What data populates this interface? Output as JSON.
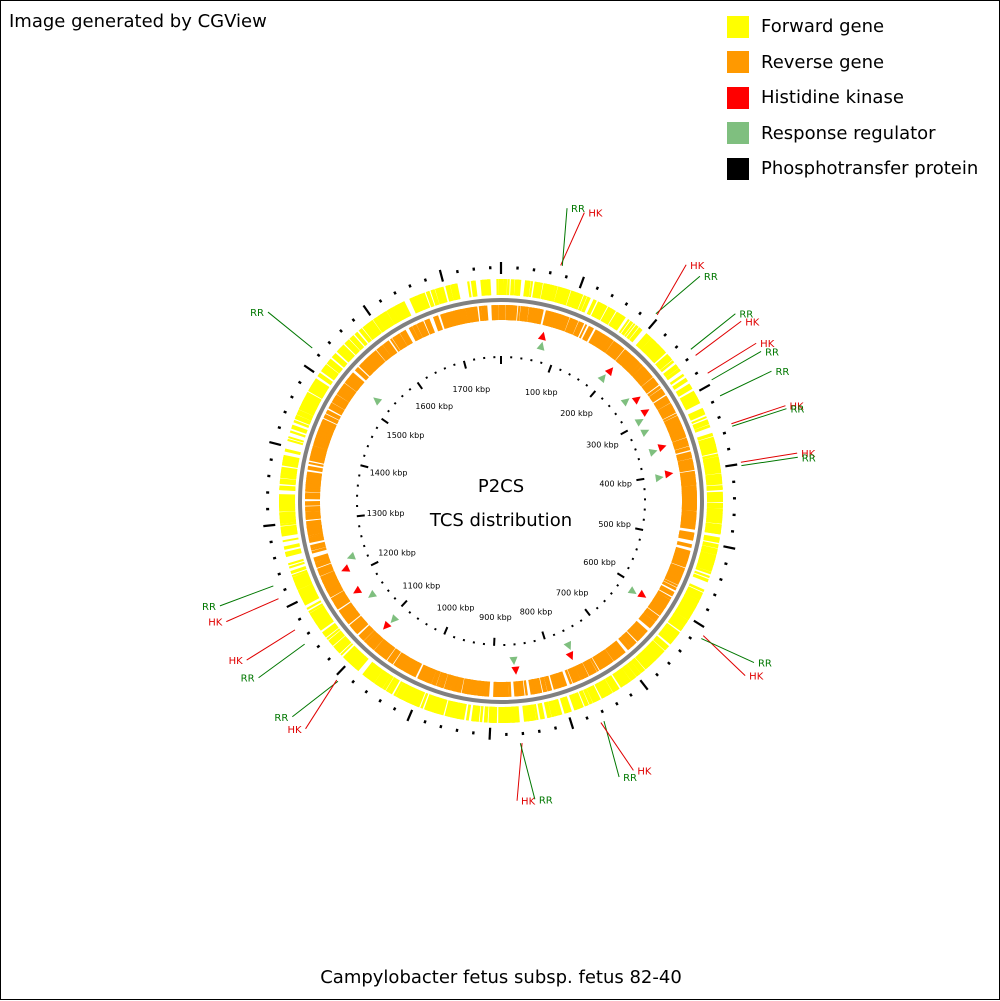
{
  "header": {
    "generator_credit": "Image generated by CGView"
  },
  "legend": [
    {
      "label": "Forward gene",
      "color": "#ffff00"
    },
    {
      "label": "Reverse gene",
      "color": "#ff9900"
    },
    {
      "label": "Histidine kinase",
      "color": "#ff0000"
    },
    {
      "label": "Response regulator",
      "color": "#7fbf7f"
    },
    {
      "label": "Phosphotransfer protein",
      "color": "#000000"
    }
  ],
  "map": {
    "center_title": "P2CS",
    "center_subtitle": "TCS distribution",
    "genome_length_kbp": 1773,
    "tick_labels": [
      "100 kbp",
      "200 kbp",
      "300 kbp",
      "400 kbp",
      "500 kbp",
      "600 kbp",
      "700 kbp",
      "800 kbp",
      "900 kbp",
      "1000 kbp",
      "1100 kbp",
      "1200 kbp",
      "1300 kbp",
      "1400 kbp",
      "1500 kbp",
      "1600 kbp",
      "1700 kbp"
    ],
    "features": [
      {
        "label": "HK",
        "kind": "histidine-kinase",
        "position_kbp": 70
      },
      {
        "label": "RR",
        "kind": "response-regulator",
        "position_kbp": 72
      },
      {
        "label": "RR",
        "kind": "response-regulator",
        "position_kbp": 195
      },
      {
        "label": "HK",
        "kind": "histidine-kinase",
        "position_kbp": 197
      },
      {
        "label": "RR",
        "kind": "response-regulator",
        "position_kbp": 253
      },
      {
        "label": "HK",
        "kind": "histidine-kinase",
        "position_kbp": 262
      },
      {
        "label": "HK",
        "kind": "histidine-kinase",
        "position_kbp": 287
      },
      {
        "label": "RR",
        "kind": "response-regulator",
        "position_kbp": 296
      },
      {
        "label": "RR",
        "kind": "response-regulator",
        "position_kbp": 317
      },
      {
        "label": "HK",
        "kind": "histidine-kinase",
        "position_kbp": 352
      },
      {
        "label": "RR",
        "kind": "response-regulator",
        "position_kbp": 355
      },
      {
        "label": "HK",
        "kind": "histidine-kinase",
        "position_kbp": 398
      },
      {
        "label": "RR",
        "kind": "response-regulator",
        "position_kbp": 402
      },
      {
        "label": "HK",
        "kind": "histidine-kinase",
        "position_kbp": 609
      },
      {
        "label": "RR",
        "kind": "response-regulator",
        "position_kbp": 613
      },
      {
        "label": "RR",
        "kind": "response-regulator",
        "position_kbp": 763
      },
      {
        "label": "HK",
        "kind": "histidine-kinase",
        "position_kbp": 767
      },
      {
        "label": "HK",
        "kind": "histidine-kinase",
        "position_kbp": 862
      },
      {
        "label": "RR",
        "kind": "response-regulator",
        "position_kbp": 864
      },
      {
        "label": "RR",
        "kind": "response-regulator",
        "position_kbp": 1094
      },
      {
        "label": "HK",
        "kind": "histidine-kinase",
        "position_kbp": 1096
      },
      {
        "label": "RR",
        "kind": "response-regulator",
        "position_kbp": 1152
      },
      {
        "label": "HK",
        "kind": "histidine-kinase",
        "position_kbp": 1172
      },
      {
        "label": "HK",
        "kind": "histidine-kinase",
        "position_kbp": 1213
      },
      {
        "label": "RR",
        "kind": "response-regulator",
        "position_kbp": 1229
      },
      {
        "label": "RR",
        "kind": "response-regulator",
        "position_kbp": 1522
      }
    ]
  },
  "footer": {
    "organism": "Campylobacter fetus subsp. fetus 82-40"
  }
}
